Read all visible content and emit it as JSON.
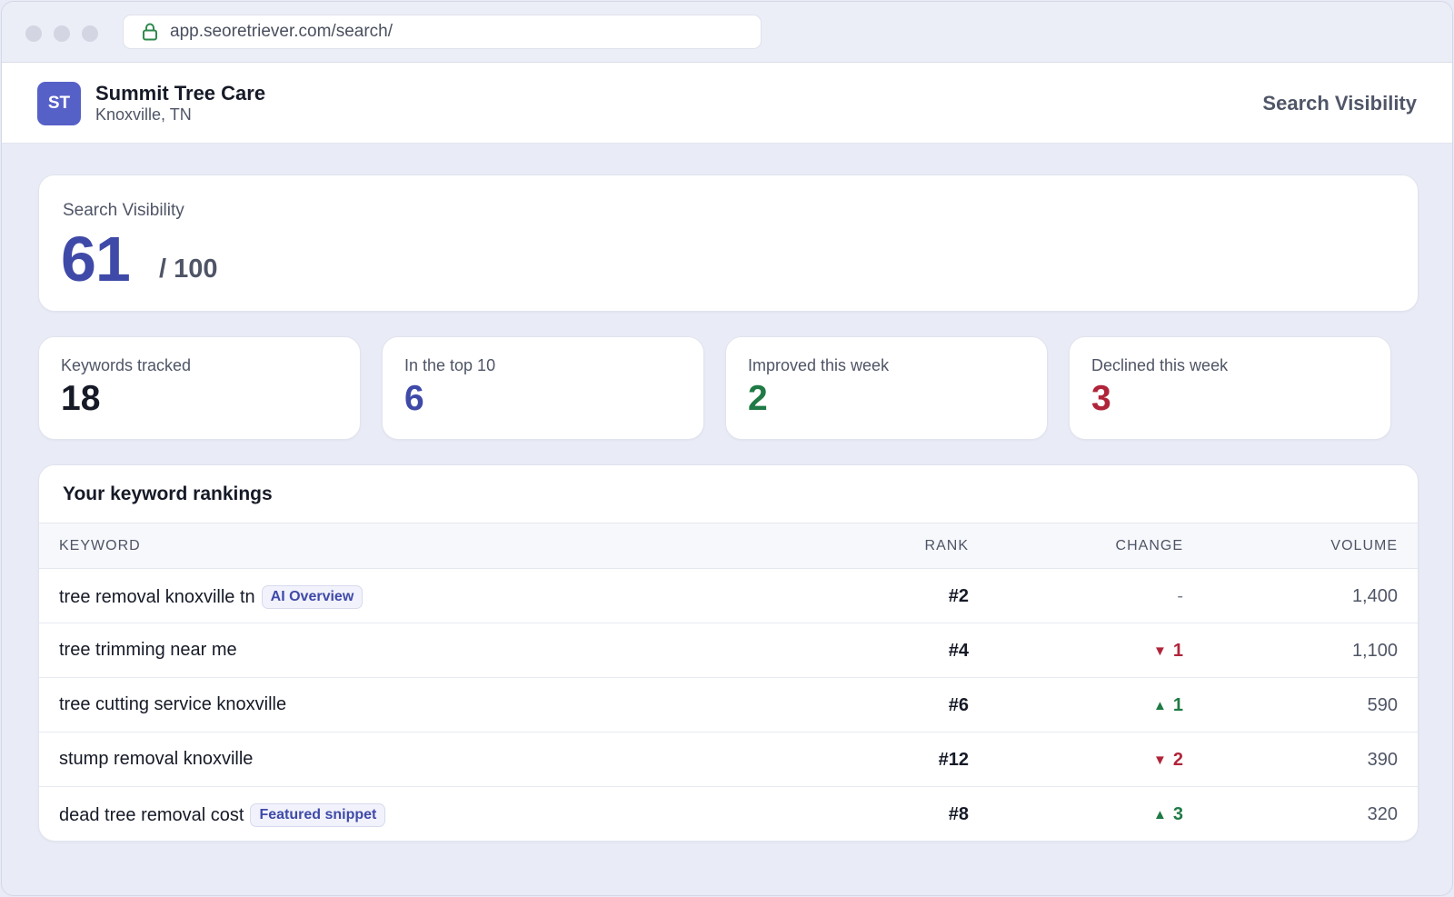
{
  "browser": {
    "url": "app.seoretriever.com/search/"
  },
  "header": {
    "avatar_initials": "ST",
    "business_name": "Summit Tree Care",
    "location": "Knoxville, TN",
    "page_title": "Search Visibility"
  },
  "score": {
    "label": "Search Visibility",
    "value": "61",
    "max": "/ 100"
  },
  "stats": [
    {
      "label": "Keywords tracked",
      "value": "18",
      "color": "#161a27"
    },
    {
      "label": "In the top 10",
      "value": "6",
      "color": "#3f4aa8"
    },
    {
      "label": "Improved this week",
      "value": "2",
      "color": "#1f7a45"
    },
    {
      "label": "Declined this week",
      "value": "3",
      "color": "#b0243a"
    }
  ],
  "rankings": {
    "title": "Your keyword rankings",
    "columns": {
      "keyword": "KEYWORD",
      "rank": "RANK",
      "change": "CHANGE",
      "volume": "VOLUME"
    },
    "rows": [
      {
        "keyword": "tree removal knoxville tn",
        "badge": "AI Overview",
        "rank": "#2",
        "direction": "none",
        "change": "-",
        "volume": "1,400"
      },
      {
        "keyword": "tree trimming near me",
        "badge": "",
        "rank": "#4",
        "direction": "down",
        "change": "1",
        "volume": "1,100"
      },
      {
        "keyword": "tree cutting service knoxville",
        "badge": "",
        "rank": "#6",
        "direction": "up",
        "change": "1",
        "volume": "590"
      },
      {
        "keyword": "stump removal knoxville",
        "badge": "",
        "rank": "#12",
        "direction": "down",
        "change": "2",
        "volume": "390"
      },
      {
        "keyword": "dead tree removal cost",
        "badge": "Featured snippet",
        "rank": "#8",
        "direction": "up",
        "change": "3",
        "volume": "320"
      }
    ]
  },
  "colors": {
    "accent": "#3f4aa8",
    "up": "#1f7a45",
    "down": "#b0243a"
  }
}
